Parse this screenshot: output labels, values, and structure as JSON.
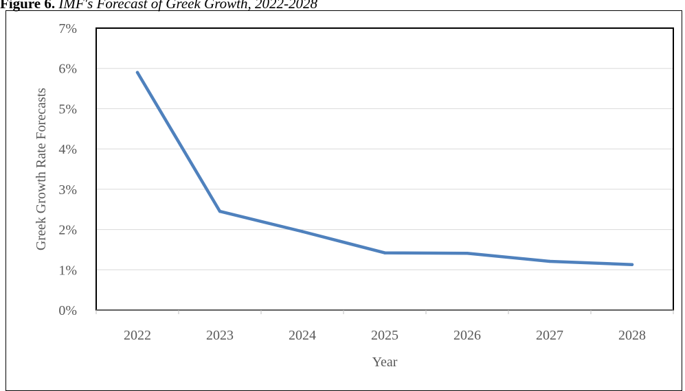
{
  "caption": {
    "label": "Figure 6.",
    "text": "IMF's Forecast of Greek Growth, 2022-2028"
  },
  "chart_data": {
    "type": "line",
    "title": "",
    "xlabel": "Year",
    "ylabel": "Greek Growth Rate Forecasts",
    "categories": [
      "2022",
      "2023",
      "2024",
      "2025",
      "2026",
      "2027",
      "2028"
    ],
    "series": [
      {
        "values": [
          5.9,
          2.45,
          1.95,
          1.42,
          1.41,
          1.21,
          1.13
        ],
        "color": "#4f81bd"
      }
    ],
    "ylim": [
      0,
      7
    ],
    "yticks": [
      0,
      1,
      2,
      3,
      4,
      5,
      6,
      7
    ],
    "ytick_format": "percent",
    "grid": true,
    "legend": false
  }
}
